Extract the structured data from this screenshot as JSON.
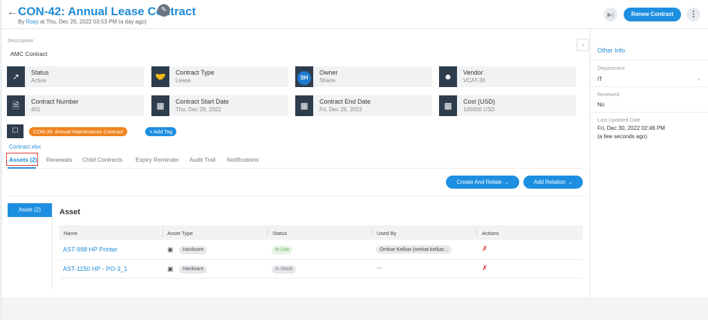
{
  "header": {
    "title": "CON-42: Annual Lease Contract",
    "byline_prefix": "By",
    "author": "Rosy",
    "byline_suffix": "at Thu, Dec 29, 2022 03:53 PM (a day ago)",
    "renew_button": "Renew Contract"
  },
  "description": {
    "label": "Description",
    "value": "AMC Contract"
  },
  "cards": [
    {
      "label": "Status",
      "value": "Active",
      "icon": "trend-chart-icon"
    },
    {
      "label": "Contract Type",
      "value": "Lease",
      "icon": "handshake-icon"
    },
    {
      "label": "Owner",
      "value": "Shane",
      "icon": "avatar",
      "initials": "SH"
    },
    {
      "label": "Vendor",
      "value": "VCAT-30",
      "icon": "user-icon"
    },
    {
      "label": "Contract Number",
      "value": "401",
      "icon": "document-icon"
    },
    {
      "label": "Contract Start Date",
      "value": "Thu, Dec 29, 2022",
      "icon": "calendar-icon"
    },
    {
      "label": "Contract End Date",
      "value": "Fri, Dec 29, 2023",
      "icon": "calendar-icon"
    },
    {
      "label": "Cost (USD)",
      "value": "100000 USD",
      "icon": "money-icon"
    }
  ],
  "tags": {
    "items": [
      "CON-36: Annual Maintenance Contract"
    ],
    "add_label": "+ Add Tag"
  },
  "attachment": "Contract.xlsx",
  "tabs": [
    {
      "label": "Assets (2)",
      "active": true
    },
    {
      "label": "Renewals"
    },
    {
      "label": "Child Contracts"
    },
    {
      "label": "Expiry Reminder"
    },
    {
      "label": "Audit Trail"
    },
    {
      "label": "Notifications"
    }
  ],
  "actions": {
    "create_relate": "Create And Relate",
    "add_relation": "Add Relation"
  },
  "assets": {
    "side_button": "Asset (2)",
    "heading": "Asset",
    "columns": [
      "Name",
      "Asset Type",
      "Status",
      "Used By",
      "Actions"
    ],
    "rows": [
      {
        "name": "AST-998 HP Printer",
        "type": "Hardware",
        "status": "In Use",
        "used_by": "Omkar Kelkar (omkar.kelkar..."
      },
      {
        "name": "AST-1150 HP - PO-3_1",
        "type": "Hardware",
        "status": "In Stock",
        "used_by": "---"
      }
    ]
  },
  "other_info": {
    "title": "Other Info",
    "department_label": "Department",
    "department_value": "IT",
    "renewed_label": "Renewed",
    "renewed_value": "No",
    "updated_label": "Last Updated Date",
    "updated_value": "Fri, Dec 30, 2022 02:46 PM",
    "updated_relative": "(a few seconds ago)"
  },
  "colors": {
    "accent": "#1d8fe0",
    "tag_orange": "#f0841f",
    "icon_dark": "#2e3d4d",
    "danger": "#e0302d"
  }
}
